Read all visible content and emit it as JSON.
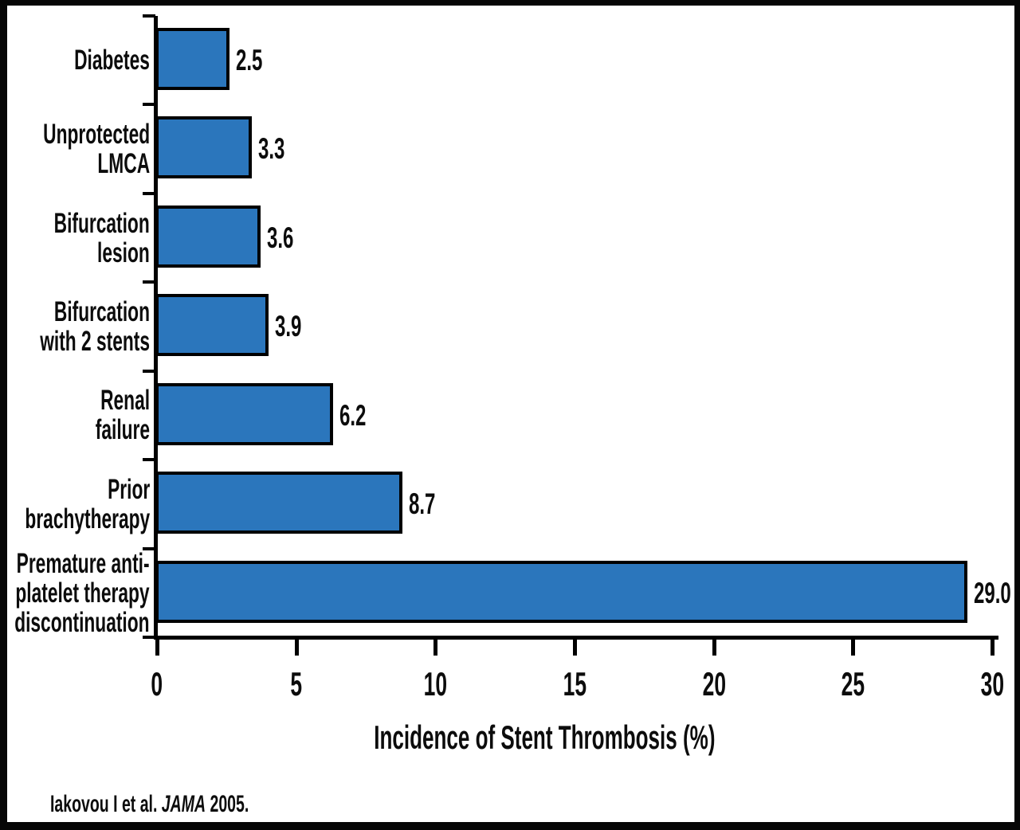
{
  "chart_data": {
    "type": "bar",
    "orientation": "horizontal",
    "title": "",
    "categories": [
      "Diabetes",
      "Unprotected LMCA",
      "Bifurcation lesion",
      "Bifurcation with 2 stents",
      "Renal failure",
      "Prior brachytherapy",
      "Premature anti-platelet therapy discontinuation"
    ],
    "category_lines": [
      [
        "Diabetes"
      ],
      [
        "Unprotected",
        "LMCA"
      ],
      [
        "Bifurcation",
        "lesion"
      ],
      [
        "Bifurcation",
        "with 2 stents"
      ],
      [
        "Renal",
        "failure"
      ],
      [
        "Prior",
        "brachytherapy"
      ],
      [
        "Premature anti-",
        "platelet therapy",
        "discontinuation"
      ]
    ],
    "values": [
      2.5,
      3.3,
      3.6,
      3.9,
      6.2,
      8.7,
      29.0
    ],
    "value_labels": [
      "2.5",
      "3.3",
      "3.6",
      "3.9",
      "6.2",
      "8.7",
      "29.0"
    ],
    "xlabel": "Incidence of Stent Thrombosis (%)",
    "ylabel": "",
    "x_ticks": [
      0,
      5,
      10,
      15,
      20,
      25,
      30
    ],
    "xlim": [
      0,
      30
    ],
    "grid": false,
    "legend": null,
    "bar_color": "#2B76BC",
    "bar_border_color": "#000000",
    "axis_color": "#000000",
    "background_color": "#FFFFFF",
    "frame_color": "#000000"
  },
  "citation": {
    "prefix": "Iakovou I et al. ",
    "journal": "JAMA",
    "suffix": " 2005."
  }
}
